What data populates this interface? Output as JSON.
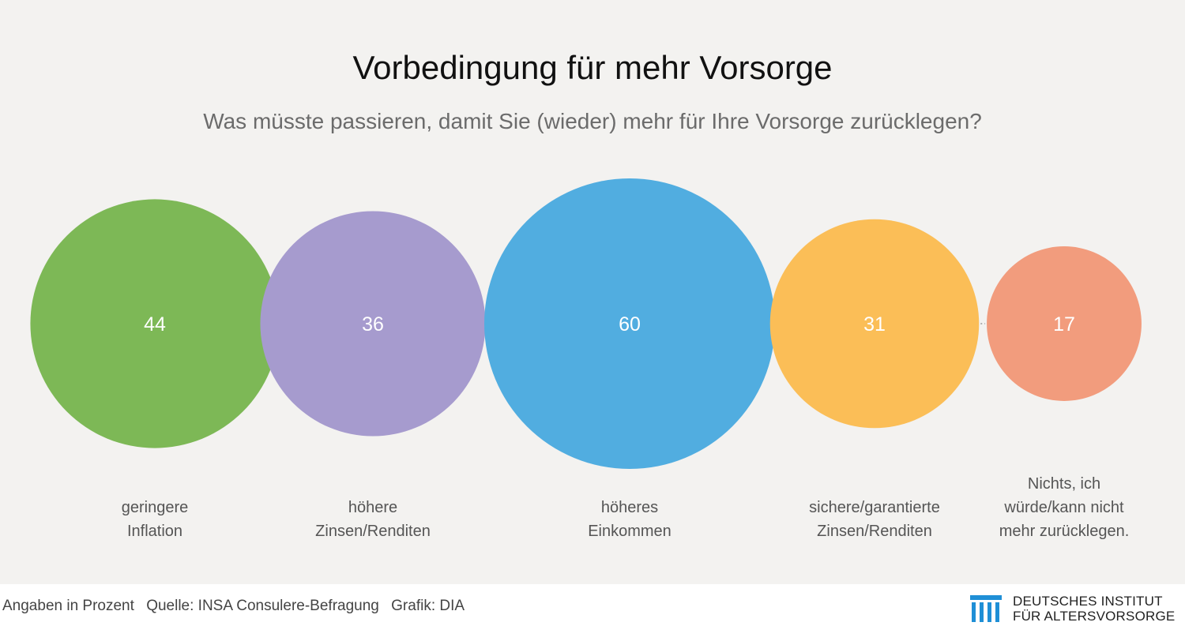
{
  "chart_data": {
    "type": "bubble",
    "title": "Vorbedingung für mehr Vorsorge",
    "subtitle": "Was müsste passieren, damit Sie (wieder) mehr für Ihre Vorsorge zurücklegen?",
    "unit": "Prozent",
    "items": [
      {
        "label_lines": [
          "geringere",
          "Inflation"
        ],
        "value": 44,
        "color": "#7db856"
      },
      {
        "label_lines": [
          "höhere",
          "Zinsen/Renditen"
        ],
        "value": 36,
        "color": "#a69bce"
      },
      {
        "label_lines": [
          "höheres",
          "Einkommen"
        ],
        "value": 60,
        "color": "#51ade0"
      },
      {
        "label_lines": [
          "sichere/garantierte",
          "Zinsen/Renditen"
        ],
        "value": 31,
        "color": "#fbbe57"
      },
      {
        "label_lines": [
          "Nichts, ich",
          "würde/kann nicht",
          "mehr zurücklegen."
        ],
        "value": 17,
        "color": "#f29c7d"
      }
    ]
  },
  "footer": {
    "note": "Angaben in Prozent",
    "source": "Quelle: INSA Consulere-Befragung",
    "credit": "Grafik: DIA"
  },
  "logo": {
    "line1": "DEUTSCHES INSTITUT",
    "line2": "FÜR ALTERSVORSORGE",
    "color": "#1f8fd6"
  }
}
